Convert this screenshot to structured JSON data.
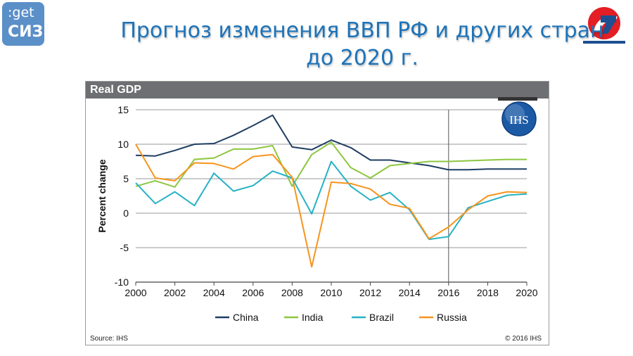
{
  "header": {
    "logo_left_line1": ":get",
    "logo_left_line2": "СИЗ",
    "title_line1": "Прогноз изменения ВВП РФ и других стран",
    "title_line2": "до 2020 г."
  },
  "chart_data": {
    "type": "line",
    "title": "Real GDP",
    "xlabel": "",
    "ylabel": "Percent change",
    "xlim": [
      2000,
      2020
    ],
    "ylim": [
      -10,
      15
    ],
    "x_ticks": [
      2000,
      2002,
      2004,
      2006,
      2008,
      2010,
      2012,
      2014,
      2016,
      2018,
      2020
    ],
    "y_ticks": [
      15,
      10,
      5,
      0,
      -5,
      -10
    ],
    "grid": "horizontal",
    "forecast_divider_x": 2016,
    "legend_position": "bottom",
    "x": [
      2000,
      2001,
      2002,
      2003,
      2004,
      2005,
      2006,
      2007,
      2008,
      2009,
      2010,
      2011,
      2012,
      2013,
      2014,
      2015,
      2016,
      2017,
      2018,
      2019,
      2020
    ],
    "series": [
      {
        "name": "China",
        "color": "#1f3d63",
        "values": [
          8.4,
          8.3,
          9.1,
          10.0,
          10.1,
          11.3,
          12.7,
          14.2,
          9.6,
          9.2,
          10.6,
          9.5,
          7.7,
          7.7,
          7.3,
          6.9,
          6.3,
          6.3,
          6.4,
          6.4,
          6.4
        ]
      },
      {
        "name": "India",
        "color": "#8dc63f",
        "values": [
          3.9,
          4.7,
          3.8,
          7.8,
          8.0,
          9.3,
          9.3,
          9.8,
          3.9,
          8.5,
          10.3,
          6.6,
          5.1,
          6.9,
          7.2,
          7.5,
          7.5,
          7.6,
          7.7,
          7.8,
          7.8
        ]
      },
      {
        "name": "Brazil",
        "color": "#27b2c4",
        "values": [
          4.4,
          1.4,
          3.1,
          1.1,
          5.8,
          3.2,
          4.0,
          6.1,
          5.1,
          -0.1,
          7.5,
          3.9,
          1.9,
          3.0,
          0.5,
          -3.8,
          -3.4,
          0.8,
          1.7,
          2.6,
          2.8
        ]
      },
      {
        "name": "Russia",
        "color": "#f7941d",
        "values": [
          10.0,
          5.1,
          4.7,
          7.3,
          7.2,
          6.4,
          8.2,
          8.5,
          5.2,
          -7.8,
          4.5,
          4.3,
          3.5,
          1.3,
          0.7,
          -3.7,
          -2.0,
          0.5,
          2.5,
          3.1,
          3.0
        ]
      }
    ],
    "source": "Source: IHS",
    "copyright": "© 2016 IHS",
    "badge": "IHS"
  }
}
